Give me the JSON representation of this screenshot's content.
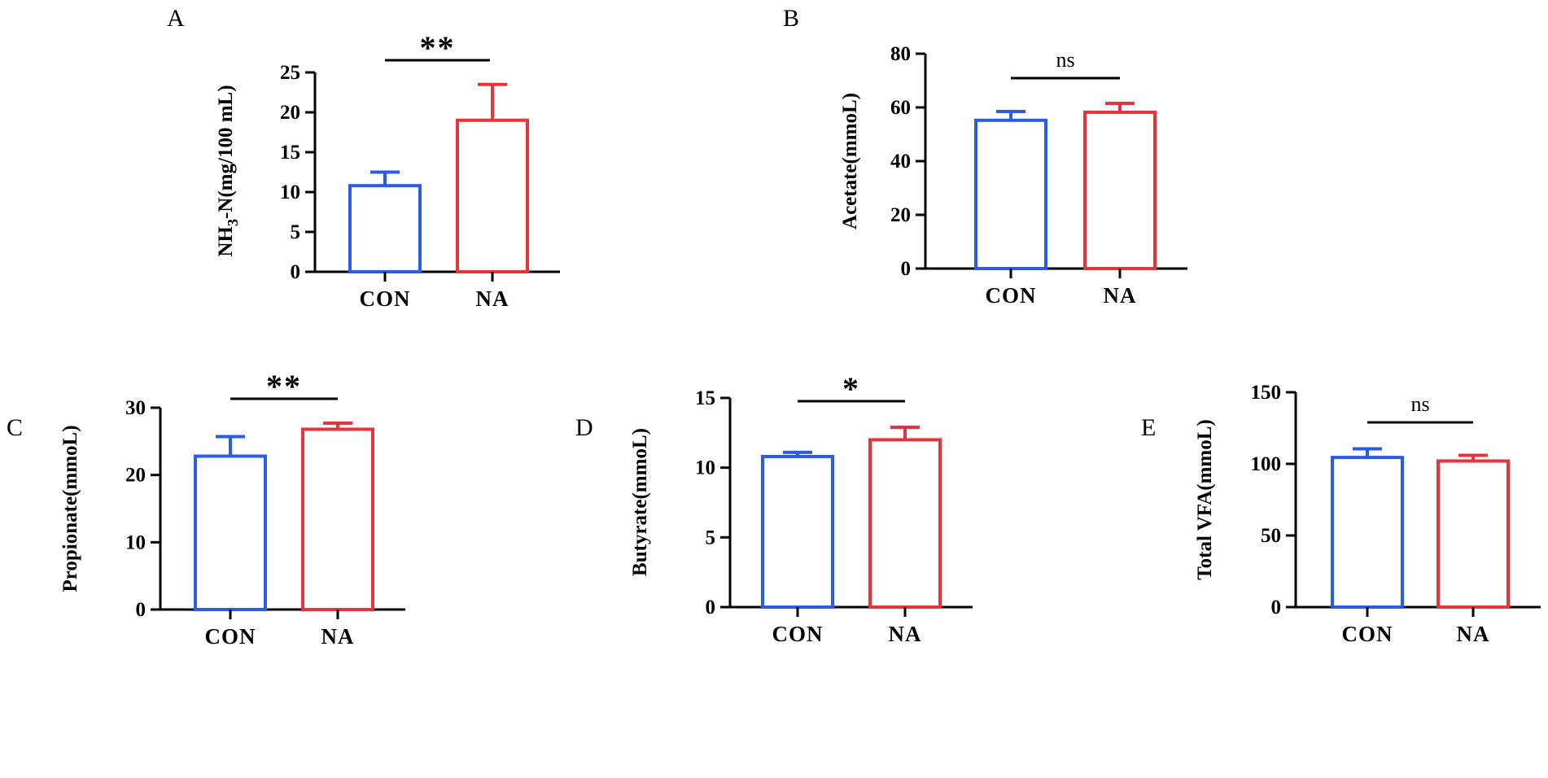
{
  "chart_data": [
    {
      "panel": "A",
      "type": "bar",
      "categories": [
        "CON",
        "NA"
      ],
      "values": [
        10.8,
        19.0
      ],
      "errors": [
        1.7,
        4.5
      ],
      "colors": [
        "#2b5ce6",
        "#e8333a"
      ],
      "ylabel": "NH3-N(mg/100 mL)",
      "ylabel_main": "NH",
      "ylabel_sub": "3",
      "ylabel_rest": "-N(mg/100 mL)",
      "ylim": [
        0,
        25
      ],
      "yticks": [
        0,
        5,
        10,
        15,
        20,
        25
      ],
      "ytick_labels": [
        "0",
        "5",
        "10",
        "15",
        "20",
        "25"
      ],
      "significance": "**"
    },
    {
      "panel": "B",
      "type": "bar",
      "categories": [
        "CON",
        "NA"
      ],
      "values": [
        55.2,
        58.2
      ],
      "errors": [
        3.3,
        3.3
      ],
      "colors": [
        "#2b5ce6",
        "#e8333a"
      ],
      "ylabel": "Acetate(mmoL)",
      "ylim": [
        0,
        80
      ],
      "yticks": [
        0,
        20,
        40,
        60,
        80
      ],
      "ytick_labels": [
        "0",
        "20",
        "40",
        "60",
        "80"
      ],
      "significance": "ns"
    },
    {
      "panel": "C",
      "type": "bar",
      "categories": [
        "CON",
        "NA"
      ],
      "values": [
        22.8,
        26.8
      ],
      "errors": [
        2.9,
        0.9
      ],
      "colors": [
        "#2b5ce6",
        "#e8333a"
      ],
      "ylabel": "Propionate(mmoL)",
      "ylim": [
        0,
        30
      ],
      "yticks": [
        0,
        10,
        20,
        30
      ],
      "ytick_labels": [
        "0",
        "10",
        "20",
        "30"
      ],
      "significance": "**"
    },
    {
      "panel": "D",
      "type": "bar",
      "categories": [
        "CON",
        "NA"
      ],
      "values": [
        10.8,
        12.0
      ],
      "errors": [
        0.3,
        0.9
      ],
      "colors": [
        "#2b5ce6",
        "#e8333a"
      ],
      "ylabel": "Butyrate(mmoL)",
      "ylim": [
        0,
        15
      ],
      "yticks": [
        0,
        5,
        10,
        15
      ],
      "ytick_labels": [
        "0",
        "5",
        "10",
        "15"
      ],
      "significance": "*"
    },
    {
      "panel": "E",
      "type": "bar",
      "categories": [
        "CON",
        "NA"
      ],
      "values": [
        104.5,
        102.0
      ],
      "errors": [
        6.0,
        4.0
      ],
      "colors": [
        "#2b5ce6",
        "#e8333a"
      ],
      "ylabel": "Total VFA(mmoL)",
      "ylim": [
        0,
        150
      ],
      "yticks": [
        0,
        50,
        100,
        150
      ],
      "ytick_labels": [
        "0",
        "50",
        "100",
        "150"
      ],
      "significance": "ns"
    }
  ]
}
